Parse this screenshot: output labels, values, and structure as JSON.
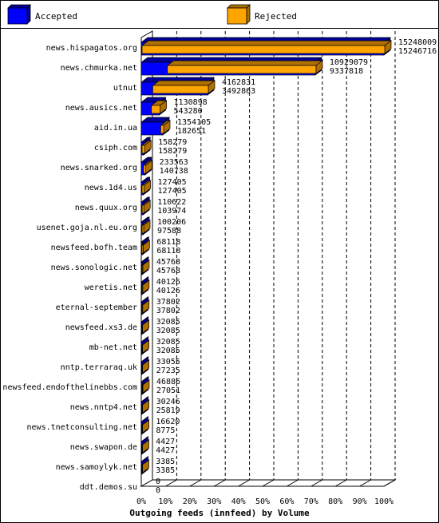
{
  "chart_data": {
    "type": "bar",
    "orientation": "horizontal",
    "title": "Outgoing feeds (innfeed) by Volume",
    "xlabel": "",
    "ylabel": "",
    "xlim": [
      0,
      100
    ],
    "x_ticks": [
      "0%",
      "10%",
      "20%",
      "30%",
      "40%",
      "50%",
      "60%",
      "70%",
      "80%",
      "90%",
      "100%"
    ],
    "grid": "vertical dashed",
    "legend_position": "top",
    "max_value": 15248009,
    "series": [
      {
        "name": "Accepted",
        "color": "#0000ff",
        "side_color": "#00009a"
      },
      {
        "name": "Rejected",
        "color": "#ffa500",
        "side_color": "#b07000"
      }
    ],
    "categories": [
      "news.hispagatos.org",
      "news.chmurka.net",
      "utnut",
      "news.ausics.net",
      "aid.in.ua",
      "csiph.com",
      "news.snarked.org",
      "news.1d4.us",
      "news.quux.org",
      "usenet.goja.nl.eu.org",
      "newsfeed.bofh.team",
      "news.sonologic.net",
      "weretis.net",
      "eternal-september",
      "newsfeed.xs3.de",
      "mb-net.net",
      "nntp.terraraq.uk",
      "newsfeed.endofthelinebbs.com",
      "news.nntp4.net",
      "news.tnetconsulting.net",
      "news.swapon.de",
      "news.samoylyk.net",
      "ddt.demos.su"
    ],
    "accepted": [
      15248009,
      10929079,
      4162831,
      1130898,
      1354105,
      158279,
      233563,
      127405,
      110622,
      100206,
      68118,
      45768,
      40126,
      37802,
      32085,
      32085,
      33055,
      46886,
      30246,
      16620,
      4427,
      3385,
      0
    ],
    "rejected": [
      15246716,
      9337818,
      3492863,
      543280,
      182651,
      158279,
      140738,
      127405,
      103974,
      97588,
      68118,
      45768,
      40126,
      37802,
      32085,
      32085,
      27235,
      27051,
      25819,
      8775,
      4427,
      3385,
      0
    ],
    "accepted_labels": [
      "15248009",
      "10929079",
      "4162831",
      "1130898",
      "1354105",
      "158279",
      "233563",
      "127405",
      "110622",
      "100206",
      "68118",
      "45768",
      "40126",
      "37802",
      "32085",
      "32085",
      "33055",
      "46886",
      "30246",
      "16620",
      "4427",
      "3385",
      "0"
    ],
    "rejected_labels": [
      "15246716",
      "9337818",
      "3492863",
      "543280",
      "182651",
      "158279",
      "140738",
      "127405",
      "103974",
      "97588",
      "68118",
      "45768",
      "40126",
      "37802",
      "32085",
      "32085",
      "27235",
      "27051",
      "25819",
      "8775",
      "4427",
      "3385",
      "0"
    ]
  }
}
